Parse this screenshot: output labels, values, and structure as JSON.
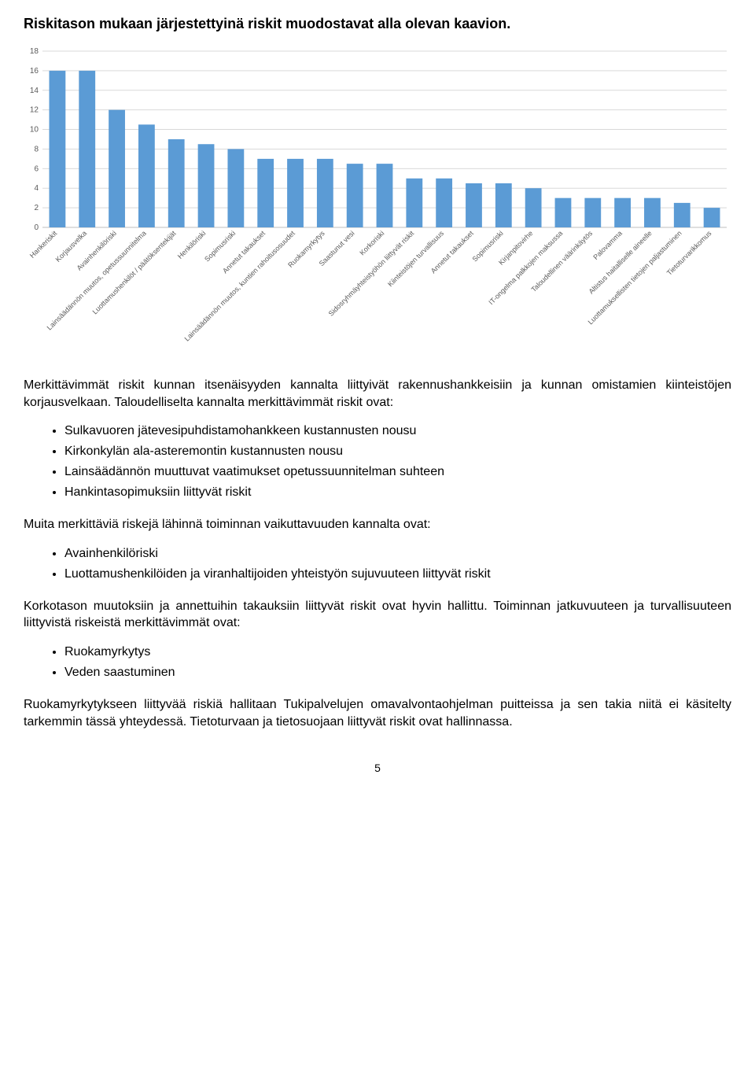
{
  "title": "Riskitason mukaan järjestettyinä riskit muodostavat alla olevan kaavion.",
  "chart": {
    "type": "bar",
    "categories": [
      "Hankeriskit",
      "Korjausvelka",
      "Avainhenkilöriski",
      "Lainsäädännön muutos, opetussuunnitelma",
      "Luottamushenkilöt / päätöksentekijät",
      "Henkilöriski",
      "Sopimusriski",
      "Annetut takaukset",
      "Lainsäädännön muutos, kuntien rahoitusosuudet",
      "Ruokamyrkytys",
      "Saastunut vesi",
      "Korkoriski",
      "Sidosryhmäyhteistyöhön liittyvät riskit",
      "Kiinteistöjen turvallisuus",
      "Annetut takaukset",
      "Sopimusriski",
      "Kirjanpitovirhe",
      "IT-ongelma palkkojen maksussa",
      "Taloudellinen väärinkäytös",
      "Palovamma",
      "Altistus haitalliselle aineelle",
      "Luottamuksellisten tietojen paljastuminen",
      "Tietoturvarikkomus"
    ],
    "values": [
      16,
      16,
      12,
      10.5,
      9,
      8.5,
      8,
      7,
      7,
      7,
      6.5,
      6.5,
      5,
      5,
      4.5,
      4.5,
      4,
      3,
      3,
      3,
      3,
      2.5,
      2
    ],
    "bar_color": "#5b9bd5",
    "ylim": [
      0,
      18
    ],
    "ytick_step": 2,
    "background_color": "#ffffff",
    "grid_color": "#d9d9d9",
    "axis_color": "#bfbfbf",
    "label_color": "#595959",
    "label_fontsize": 10,
    "xlabel_fontsize": 9,
    "bar_width_ratio": 0.55
  },
  "para1": "Merkittävimmät riskit kunnan itsenäisyyden kannalta liittyivät rakennushankkeisiin ja kunnan omistamien kiinteistöjen korjausvelkaan. Taloudelliselta kannalta merkittävimmät riskit ovat:",
  "list1": [
    "Sulkavuoren jätevesipuhdistamohankkeen kustannusten nousu",
    "Kirkonkylän ala-asteremontin kustannusten nousu",
    "Lainsäädännön muuttuvat vaatimukset opetussuunnitelman suhteen",
    "Hankintasopimuksiin liittyvät riskit"
  ],
  "para2": "Muita merkittäviä riskejä lähinnä toiminnan vaikuttavuuden kannalta ovat:",
  "list2": [
    "Avainhenkilöriski",
    "Luottamushenkilöiden ja viranhaltijoiden yhteistyön sujuvuuteen liittyvät riskit"
  ],
  "para3": "Korkotason muutoksiin ja annettuihin takauksiin liittyvät riskit ovat hyvin hallittu. Toiminnan jatkuvuuteen ja turvallisuuteen liittyvistä riskeistä merkittävimmät ovat:",
  "list3": [
    "Ruokamyrkytys",
    "Veden saastuminen"
  ],
  "para4": "Ruokamyrkytykseen liittyvää riskiä hallitaan Tukipalvelujen omavalvontaohjelman puitteissa ja sen takia niitä ei käsitelty tarkemmin tässä yhteydessä. Tietoturvaan ja tietosuojaan liittyvät riskit ovat hallinnassa.",
  "page_number": "5"
}
